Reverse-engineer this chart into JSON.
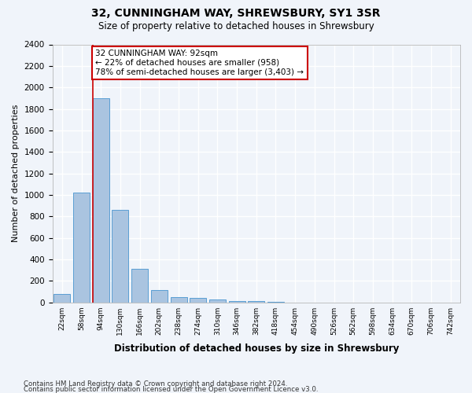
{
  "title1": "32, CUNNINGHAM WAY, SHREWSBURY, SY1 3SR",
  "title2": "Size of property relative to detached houses in Shrewsbury",
  "xlabel": "Distribution of detached houses by size in Shrewsbury",
  "ylabel": "Number of detached properties",
  "bar_color": "#aac4e0",
  "bar_edge_color": "#5a9fd4",
  "annotation_line_color": "#cc0000",
  "annotation_box_color": "#cc0000",
  "annotation_text": "32 CUNNINGHAM WAY: 92sqm\n← 22% of detached houses are smaller (958)\n78% of semi-detached houses are larger (3,403) →",
  "property_bin_index": 2,
  "bin_labels": [
    "22sqm",
    "58sqm",
    "94sqm",
    "130sqm",
    "166sqm",
    "202sqm",
    "238sqm",
    "274sqm",
    "310sqm",
    "346sqm",
    "382sqm",
    "418sqm",
    "454sqm",
    "490sqm",
    "526sqm",
    "562sqm",
    "598sqm",
    "634sqm",
    "670sqm",
    "706sqm",
    "742sqm"
  ],
  "bin_values": [
    80,
    1020,
    1900,
    860,
    310,
    115,
    50,
    40,
    30,
    15,
    10,
    5,
    0,
    0,
    0,
    0,
    0,
    0,
    0,
    0,
    0
  ],
  "ylim": [
    0,
    2400
  ],
  "yticks": [
    0,
    200,
    400,
    600,
    800,
    1000,
    1200,
    1400,
    1600,
    1800,
    2000,
    2200,
    2400
  ],
  "footer1": "Contains HM Land Registry data © Crown copyright and database right 2024.",
  "footer2": "Contains public sector information licensed under the Open Government Licence v3.0.",
  "bg_color": "#f0f4fa",
  "grid_color": "#ffffff"
}
